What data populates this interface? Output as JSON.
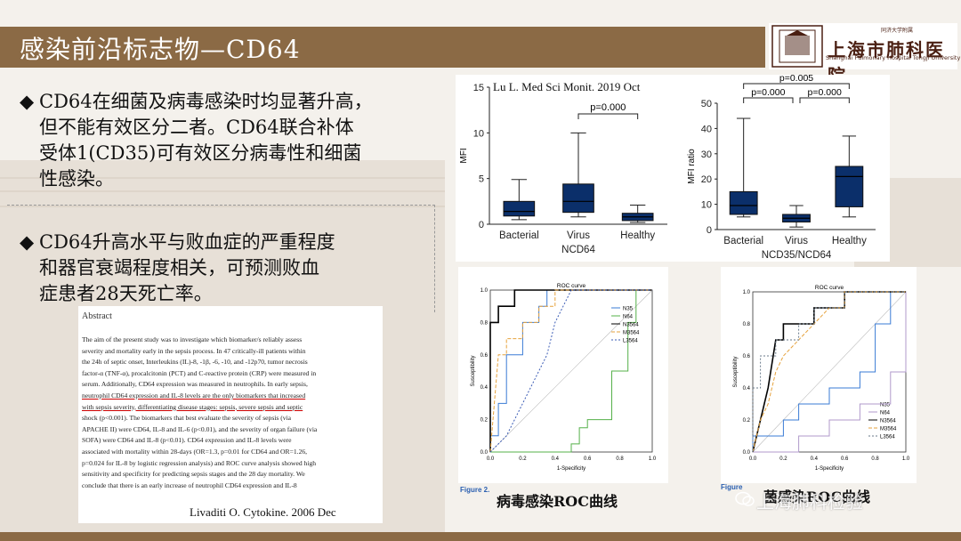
{
  "slide": {
    "title": "感染前沿标志物—CD64",
    "colors": {
      "title_bar": "#8b6a45",
      "box_fill": "#0b2f6a",
      "background": "#f4f1ec"
    }
  },
  "logo": {
    "name": "上海市肺科医院",
    "small": "同济大学附属",
    "en": "Shanghai Pulmonary Hospital Tongji University"
  },
  "bullets": [
    {
      "icon": "◆",
      "text": "CD64在细菌及病毒感染时均显著升高，但不能有效区分二者。CD64联合补体受体1(CD35)可有效区分病毒性和细菌性感染。"
    },
    {
      "icon": "◆",
      "text": "CD64升高水平与败血症的严重程度和器官衰竭程度相关，可预测败血症患者28天死亡率。"
    }
  ],
  "bullet_lines": {
    "b1": [
      "CD64在细菌及病毒感染时均显著升高，",
      "但不能有效区分二者。CD64联合补体",
      "受体1(CD35)可有效区分病毒性和细菌",
      "性感染。"
    ],
    "b2": [
      "CD64升高水平与败血症的严重程度",
      "和器官衰竭程度相关，可预测败血",
      "症患者28天死亡率。"
    ]
  },
  "abstract": {
    "heading": "Abstract",
    "lines": [
      "The aim of the present study was to investigate which biomarker/s reliably assess",
      "severity and mortality early in the sepsis process. In 47 critically-ill patients within",
      "the 24h of septic onset, Interleukins (IL)-8, -1β, -6, -10, and -12p70, tumor necrosis",
      "factor-α (TNF-α), procalcitonin (PCT) and C-reactive protein (CRP) were measured in",
      "serum. Additionally, CD64 expression was measured in neutrophils. In early sepsis,",
      "neutrophil CD64 expression and IL-8 levels are the only biomarkers that increased",
      "with sepsis severity, differentiating disease stages: sepsis, severe sepsis and septic",
      "shock (p<0.001). The biomarkers that best evaluate the severity of sepsis (via",
      "APACHE II) were CD64, IL-8 and IL-6 (p<0.01), and the severity of organ failure (via",
      "SOFA) were CD64 and IL-8 (p<0.01). CD64 expression and IL-8 levels were",
      "associated with mortality within 28-days (OR=1.3, p=0.01 for CD64 and OR=1.26,",
      "p=0.024 for IL-8 by logistic regression analysis) and ROC curve analysis showed high",
      "sensitivity and specificity for predicting sepsis stages and the 28 day mortality. We",
      "conclude that there is an early increase of neutrophil CD64 expression and IL-8"
    ]
  },
  "citations": {
    "top": "Lu L. Med Sci Monit. 2019 Oct",
    "bottom": "Livaditi O. Cytokine. 2006 Dec"
  },
  "chart_data": [
    {
      "type": "box",
      "ylabel": "MFI",
      "xlabel": "NCD64",
      "ylim": [
        0,
        15
      ],
      "yticks": [
        0,
        5,
        10,
        15
      ],
      "categories": [
        "Bacterial",
        "Virus",
        "Healthy"
      ],
      "boxes": [
        {
          "min": 0.5,
          "q1": 0.9,
          "median": 1.4,
          "q3": 2.5,
          "max": 4.9
        },
        {
          "min": 0.8,
          "q1": 1.3,
          "median": 2.5,
          "q3": 4.4,
          "max": 10.0
        },
        {
          "min": 0.2,
          "q1": 0.4,
          "median": 0.8,
          "q3": 1.2,
          "max": 2.1
        }
      ],
      "annotations": [
        {
          "label": "p=0.000",
          "from": "Virus",
          "to": "Healthy"
        }
      ]
    },
    {
      "type": "box",
      "ylabel": "MFI ratio",
      "xlabel": "NCD35/NCD64",
      "ylim": [
        0,
        50
      ],
      "yticks": [
        0,
        10,
        20,
        30,
        40,
        50
      ],
      "categories": [
        "Bacterial",
        "Virus",
        "Healthy"
      ],
      "boxes": [
        {
          "min": 5,
          "q1": 6,
          "median": 9.5,
          "q3": 15,
          "max": 44
        },
        {
          "min": 1,
          "q1": 3,
          "median": 4.5,
          "q3": 6,
          "max": 9.5
        },
        {
          "min": 5,
          "q1": 9,
          "median": 21,
          "q3": 25,
          "max": 37
        }
      ],
      "annotations": [
        {
          "label": "p=0.005",
          "from": "Bacterial",
          "to": "Healthy"
        },
        {
          "label": "p=0.000",
          "from": "Bacterial",
          "to": "Virus"
        },
        {
          "label": "p=0.000",
          "from": "Virus",
          "to": "Healthy"
        }
      ]
    },
    {
      "type": "line",
      "title": "ROC curve",
      "xlabel": "1-Specificity",
      "ylabel": "Susceptibility",
      "xlim": [
        0,
        1
      ],
      "ylim": [
        0,
        1
      ],
      "ticks": [
        "0.0",
        "0.2",
        "0.4",
        "0.6",
        "0.8",
        "1.0"
      ],
      "caption_label": "Figure 2.",
      "caption": "病毒感染ROC曲线",
      "series": [
        {
          "name": "N35",
          "color": "#3a7bd5",
          "dash": "",
          "points": [
            [
              0,
              0
            ],
            [
              0,
              0.1
            ],
            [
              0.05,
              0.1
            ],
            [
              0.05,
              0.3
            ],
            [
              0.1,
              0.3
            ],
            [
              0.1,
              0.6
            ],
            [
              0.2,
              0.6
            ],
            [
              0.2,
              0.8
            ],
            [
              0.3,
              0.8
            ],
            [
              0.3,
              0.9
            ],
            [
              0.35,
              0.9
            ],
            [
              0.35,
              1.0
            ],
            [
              1,
              1
            ]
          ]
        },
        {
          "name": "N64",
          "color": "#55b04a",
          "dash": "",
          "points": [
            [
              0,
              0
            ],
            [
              0.5,
              0
            ],
            [
              0.5,
              0.05
            ],
            [
              0.55,
              0.05
            ],
            [
              0.55,
              0.15
            ],
            [
              0.6,
              0.15
            ],
            [
              0.6,
              0.2
            ],
            [
              0.75,
              0.2
            ],
            [
              0.75,
              0.5
            ],
            [
              0.85,
              0.5
            ],
            [
              0.85,
              0.8
            ],
            [
              0.9,
              0.8
            ],
            [
              0.9,
              1.0
            ],
            [
              1,
              1
            ]
          ]
        },
        {
          "name": "N3564",
          "color": "#000000",
          "dash": "",
          "points": [
            [
              0,
              0
            ],
            [
              0,
              0.8
            ],
            [
              0.05,
              0.8
            ],
            [
              0.05,
              0.9
            ],
            [
              0.15,
              0.9
            ],
            [
              0.15,
              1.0
            ],
            [
              1,
              1
            ]
          ]
        },
        {
          "name": "M3564",
          "color": "#e6a23c",
          "dash": "4,2",
          "points": [
            [
              0,
              0
            ],
            [
              0.05,
              0.6
            ],
            [
              0.1,
              0.6
            ],
            [
              0.1,
              0.7
            ],
            [
              0.2,
              0.7
            ],
            [
              0.2,
              0.8
            ],
            [
              0.3,
              0.8
            ],
            [
              0.3,
              0.9
            ],
            [
              0.4,
              0.9
            ],
            [
              0.4,
              1.0
            ],
            [
              1,
              1
            ]
          ]
        },
        {
          "name": "L3564",
          "color": "#3a5bb5",
          "dash": "2,2",
          "points": [
            [
              0,
              0
            ],
            [
              0.1,
              0.1
            ],
            [
              0.2,
              0.3
            ],
            [
              0.25,
              0.4
            ],
            [
              0.3,
              0.5
            ],
            [
              0.35,
              0.6
            ],
            [
              0.4,
              0.8
            ],
            [
              0.45,
              0.9
            ],
            [
              0.5,
              1.0
            ],
            [
              1,
              1
            ]
          ]
        }
      ]
    },
    {
      "type": "line",
      "title": "ROC curve",
      "xlabel": "1-Specificity",
      "ylabel": "Susceptibility",
      "xlim": [
        0,
        1
      ],
      "ylim": [
        0,
        1
      ],
      "ticks": [
        "0.0",
        "0.2",
        "0.4",
        "0.6",
        "0.8",
        "1.0"
      ],
      "caption_label": "Figure",
      "caption": "菌感染ROC曲线",
      "series": [
        {
          "name": "N35",
          "color": "#3a7bd5",
          "dash": "",
          "points": [
            [
              0,
              0
            ],
            [
              0,
              0.1
            ],
            [
              0.2,
              0.1
            ],
            [
              0.2,
              0.2
            ],
            [
              0.3,
              0.2
            ],
            [
              0.3,
              0.3
            ],
            [
              0.5,
              0.3
            ],
            [
              0.5,
              0.4
            ],
            [
              0.7,
              0.4
            ],
            [
              0.7,
              0.5
            ],
            [
              0.8,
              0.5
            ],
            [
              0.8,
              0.8
            ],
            [
              0.9,
              0.8
            ],
            [
              0.9,
              1.0
            ],
            [
              1,
              1
            ]
          ]
        },
        {
          "name": "N64",
          "color": "#b09acb",
          "dash": "",
          "points": [
            [
              0,
              0
            ],
            [
              0.3,
              0
            ],
            [
              0.3,
              0.1
            ],
            [
              0.5,
              0.1
            ],
            [
              0.5,
              0.2
            ],
            [
              0.7,
              0.2
            ],
            [
              0.7,
              0.3
            ],
            [
              0.9,
              0.3
            ],
            [
              0.9,
              0.5
            ],
            [
              1,
              0.5
            ],
            [
              1,
              1
            ]
          ]
        },
        {
          "name": "N3564",
          "color": "#000000",
          "dash": "",
          "points": [
            [
              0,
              0
            ],
            [
              0.1,
              0.4
            ],
            [
              0.15,
              0.7
            ],
            [
              0.2,
              0.7
            ],
            [
              0.2,
              0.8
            ],
            [
              0.4,
              0.8
            ],
            [
              0.4,
              0.9
            ],
            [
              0.6,
              0.9
            ],
            [
              0.6,
              1.0
            ],
            [
              1,
              1
            ]
          ]
        },
        {
          "name": "M3564",
          "color": "#e6a23c",
          "dash": "4,2",
          "points": [
            [
              0,
              0
            ],
            [
              0.05,
              0.2
            ],
            [
              0.1,
              0.3
            ],
            [
              0.15,
              0.5
            ],
            [
              0.2,
              0.6
            ],
            [
              0.3,
              0.7
            ],
            [
              0.4,
              0.8
            ],
            [
              0.5,
              0.9
            ],
            [
              0.6,
              0.9
            ],
            [
              0.6,
              1.0
            ],
            [
              1,
              1
            ]
          ]
        },
        {
          "name": "L3564",
          "color": "#6a7a8a",
          "dash": "2,2",
          "points": [
            [
              0,
              0
            ],
            [
              0,
              0.4
            ],
            [
              0.05,
              0.4
            ],
            [
              0.05,
              0.6
            ],
            [
              0.15,
              0.6
            ],
            [
              0.15,
              0.7
            ],
            [
              0.3,
              0.7
            ],
            [
              0.3,
              0.8
            ],
            [
              0.4,
              0.8
            ],
            [
              0.4,
              0.9
            ],
            [
              0.6,
              0.9
            ],
            [
              0.6,
              1.0
            ],
            [
              1,
              1
            ]
          ]
        }
      ]
    }
  ],
  "watermark": "上海肺科检验"
}
